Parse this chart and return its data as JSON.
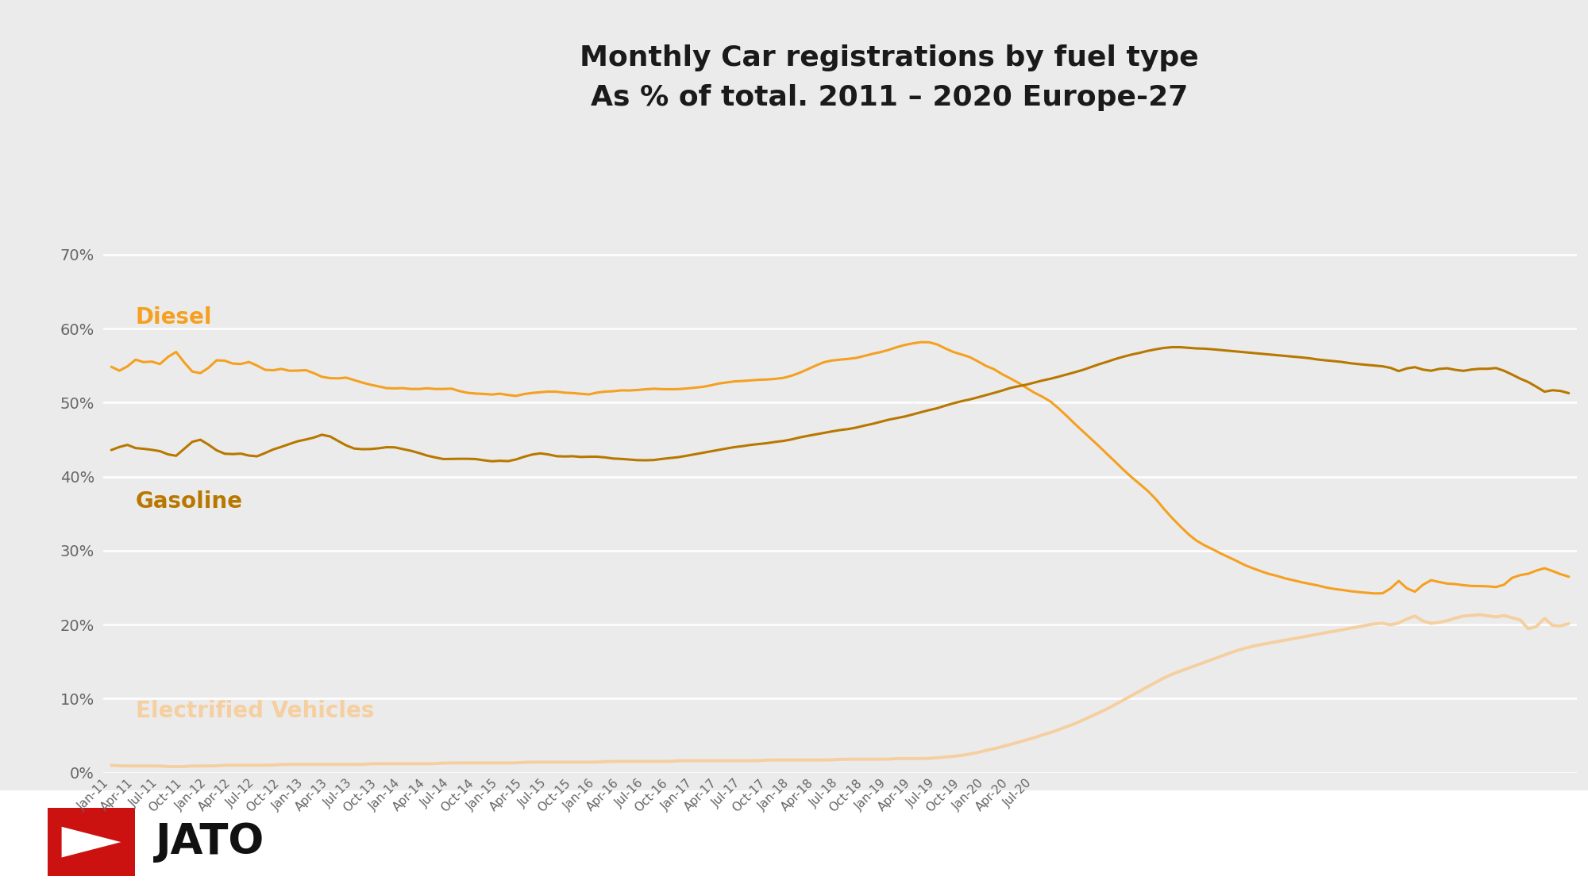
{
  "title_line1": "Monthly Car registrations by fuel type",
  "title_line2": "As % of total. 2011 – 2020 Europe-27",
  "background_color": "#EBEBEB",
  "plot_bg_color": "#EBEBEB",
  "footer_bg_color": "#FFFFFF",
  "grid_color": "#FFFFFF",
  "diesel_color": "#F5A020",
  "gasoline_color": "#B87800",
  "ev_color": "#F5CFA0",
  "label_diesel_color": "#F5A020",
  "label_gasoline_color": "#B87800",
  "label_ev_color": "#F5CFA0",
  "ylim": [
    0,
    0.72
  ],
  "yticks": [
    0.0,
    0.1,
    0.2,
    0.3,
    0.4,
    0.5,
    0.6,
    0.7
  ],
  "diesel_label": "Diesel",
  "gasoline_label": "Gasoline",
  "ev_label": "Electrified Vehicles",
  "diesel_data": [
    0.55,
    0.54,
    0.548,
    0.562,
    0.552,
    0.558,
    0.548,
    0.562,
    0.574,
    0.553,
    0.54,
    0.538,
    0.546,
    0.56,
    0.557,
    0.552,
    0.551,
    0.557,
    0.55,
    0.543,
    0.543,
    0.547,
    0.542,
    0.543,
    0.545,
    0.54,
    0.534,
    0.533,
    0.532,
    0.535,
    0.53,
    0.527,
    0.524,
    0.522,
    0.519,
    0.519,
    0.52,
    0.518,
    0.518,
    0.52,
    0.518,
    0.518,
    0.52,
    0.515,
    0.513,
    0.512,
    0.512,
    0.51,
    0.513,
    0.51,
    0.508,
    0.512,
    0.513,
    0.514,
    0.515,
    0.515,
    0.513,
    0.513,
    0.512,
    0.51,
    0.514,
    0.515,
    0.515,
    0.517,
    0.516,
    0.517,
    0.518,
    0.519,
    0.518,
    0.518,
    0.518,
    0.519,
    0.52,
    0.521,
    0.523,
    0.526,
    0.527,
    0.529,
    0.529,
    0.53,
    0.531,
    0.531,
    0.532,
    0.533,
    0.536,
    0.54,
    0.545,
    0.55,
    0.555,
    0.557,
    0.558,
    0.559,
    0.56,
    0.563,
    0.566,
    0.568,
    0.571,
    0.575,
    0.578,
    0.58,
    0.582,
    0.582,
    0.579,
    0.573,
    0.568,
    0.565,
    0.562,
    0.556,
    0.549,
    0.546,
    0.538,
    0.533,
    0.527,
    0.52,
    0.513,
    0.508,
    0.502,
    0.492,
    0.482,
    0.471,
    0.461,
    0.451,
    0.441,
    0.43,
    0.42,
    0.409,
    0.399,
    0.39,
    0.381,
    0.37,
    0.356,
    0.344,
    0.333,
    0.322,
    0.313,
    0.307,
    0.302,
    0.296,
    0.291,
    0.286,
    0.28,
    0.276,
    0.272,
    0.268,
    0.266,
    0.262,
    0.26,
    0.257,
    0.255,
    0.253,
    0.25,
    0.248,
    0.247,
    0.245,
    0.244,
    0.243,
    0.242,
    0.241,
    0.247,
    0.265,
    0.247,
    0.241,
    0.255,
    0.262,
    0.257,
    0.255,
    0.255,
    0.253,
    0.252,
    0.252,
    0.252,
    0.25,
    0.252,
    0.265,
    0.267,
    0.268,
    0.273,
    0.278,
    0.272,
    0.268,
    0.264
  ],
  "gasoline_data": [
    0.435,
    0.44,
    0.445,
    0.437,
    0.438,
    0.436,
    0.435,
    0.43,
    0.425,
    0.438,
    0.448,
    0.452,
    0.443,
    0.435,
    0.43,
    0.43,
    0.432,
    0.428,
    0.426,
    0.432,
    0.437,
    0.44,
    0.444,
    0.448,
    0.45,
    0.452,
    0.458,
    0.455,
    0.448,
    0.442,
    0.437,
    0.437,
    0.437,
    0.438,
    0.44,
    0.44,
    0.437,
    0.435,
    0.432,
    0.428,
    0.426,
    0.423,
    0.424,
    0.424,
    0.424,
    0.424,
    0.422,
    0.42,
    0.422,
    0.42,
    0.423,
    0.427,
    0.43,
    0.432,
    0.43,
    0.427,
    0.427,
    0.428,
    0.426,
    0.427,
    0.427,
    0.426,
    0.424,
    0.424,
    0.423,
    0.422,
    0.422,
    0.422,
    0.424,
    0.425,
    0.426,
    0.428,
    0.43,
    0.432,
    0.434,
    0.436,
    0.438,
    0.44,
    0.441,
    0.443,
    0.444,
    0.445,
    0.447,
    0.448,
    0.45,
    0.453,
    0.455,
    0.457,
    0.459,
    0.461,
    0.463,
    0.464,
    0.466,
    0.469,
    0.471,
    0.474,
    0.477,
    0.479,
    0.481,
    0.484,
    0.487,
    0.49,
    0.492,
    0.496,
    0.499,
    0.502,
    0.504,
    0.507,
    0.51,
    0.513,
    0.516,
    0.52,
    0.522,
    0.524,
    0.527,
    0.53,
    0.532,
    0.535,
    0.538,
    0.541,
    0.544,
    0.548,
    0.552,
    0.555,
    0.559,
    0.562,
    0.565,
    0.567,
    0.57,
    0.572,
    0.574,
    0.575,
    0.575,
    0.574,
    0.573,
    0.573,
    0.572,
    0.571,
    0.57,
    0.569,
    0.568,
    0.567,
    0.566,
    0.565,
    0.564,
    0.563,
    0.562,
    0.561,
    0.56,
    0.558,
    0.557,
    0.556,
    0.555,
    0.553,
    0.552,
    0.551,
    0.55,
    0.549,
    0.548,
    0.54,
    0.547,
    0.549,
    0.544,
    0.542,
    0.546,
    0.547,
    0.544,
    0.542,
    0.545,
    0.546,
    0.545,
    0.548,
    0.543,
    0.538,
    0.532,
    0.528,
    0.522,
    0.512,
    0.518,
    0.516,
    0.512
  ],
  "ev_data": [
    0.01,
    0.009,
    0.009,
    0.009,
    0.009,
    0.009,
    0.009,
    0.008,
    0.008,
    0.008,
    0.009,
    0.009,
    0.009,
    0.009,
    0.01,
    0.01,
    0.01,
    0.01,
    0.01,
    0.01,
    0.01,
    0.011,
    0.011,
    0.011,
    0.011,
    0.011,
    0.011,
    0.011,
    0.011,
    0.011,
    0.011,
    0.011,
    0.012,
    0.012,
    0.012,
    0.012,
    0.012,
    0.012,
    0.012,
    0.012,
    0.012,
    0.013,
    0.013,
    0.013,
    0.013,
    0.013,
    0.013,
    0.013,
    0.013,
    0.013,
    0.013,
    0.014,
    0.014,
    0.014,
    0.014,
    0.014,
    0.014,
    0.014,
    0.014,
    0.014,
    0.014,
    0.015,
    0.015,
    0.015,
    0.015,
    0.015,
    0.015,
    0.015,
    0.015,
    0.015,
    0.016,
    0.016,
    0.016,
    0.016,
    0.016,
    0.016,
    0.016,
    0.016,
    0.016,
    0.016,
    0.016,
    0.017,
    0.017,
    0.017,
    0.017,
    0.017,
    0.017,
    0.017,
    0.017,
    0.017,
    0.018,
    0.018,
    0.018,
    0.018,
    0.018,
    0.018,
    0.018,
    0.019,
    0.019,
    0.019,
    0.019,
    0.019,
    0.02,
    0.021,
    0.022,
    0.023,
    0.025,
    0.027,
    0.03,
    0.032,
    0.035,
    0.038,
    0.041,
    0.044,
    0.047,
    0.051,
    0.054,
    0.058,
    0.062,
    0.066,
    0.071,
    0.076,
    0.081,
    0.086,
    0.092,
    0.098,
    0.104,
    0.11,
    0.116,
    0.122,
    0.128,
    0.133,
    0.137,
    0.141,
    0.145,
    0.149,
    0.153,
    0.157,
    0.161,
    0.165,
    0.168,
    0.171,
    0.173,
    0.175,
    0.177,
    0.179,
    0.181,
    0.183,
    0.185,
    0.187,
    0.189,
    0.191,
    0.193,
    0.195,
    0.197,
    0.199,
    0.201,
    0.203,
    0.198,
    0.202,
    0.207,
    0.215,
    0.203,
    0.201,
    0.203,
    0.205,
    0.209,
    0.212,
    0.212,
    0.214,
    0.212,
    0.209,
    0.214,
    0.208,
    0.21,
    0.19,
    0.195,
    0.215,
    0.195,
    0.198,
    0.202
  ],
  "x_tick_labels": [
    "Jan-11",
    "Apr-11",
    "Jul-11",
    "Oct-11",
    "Jan-12",
    "Apr-12",
    "Jul-12",
    "Oct-12",
    "Jan-13",
    "Apr-13",
    "Jul-13",
    "Oct-13",
    "Jan-14",
    "Apr-14",
    "Jul-14",
    "Oct-14",
    "Jan-15",
    "Apr-15",
    "Jul-15",
    "Oct-15",
    "Jan-16",
    "Apr-16",
    "Jul-16",
    "Oct-16",
    "Jan-17",
    "Apr-17",
    "Jul-17",
    "Oct-17",
    "Jan-18",
    "Apr-18",
    "Jul-18",
    "Oct-18",
    "Jan-19",
    "Apr-19",
    "Jul-19",
    "Oct-19",
    "Jan-20",
    "Apr-20",
    "Jul-20"
  ],
  "x_tick_positions": [
    0,
    3,
    6,
    9,
    12,
    15,
    18,
    21,
    24,
    27,
    30,
    33,
    36,
    39,
    42,
    45,
    48,
    51,
    54,
    57,
    60,
    63,
    66,
    69,
    72,
    75,
    78,
    81,
    84,
    87,
    90,
    93,
    96,
    99,
    102,
    105,
    108,
    111,
    114
  ]
}
